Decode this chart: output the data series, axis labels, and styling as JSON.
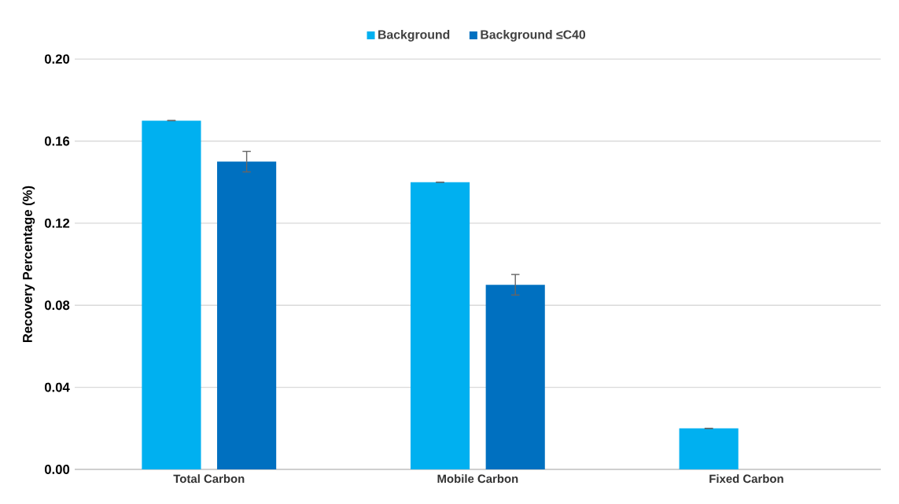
{
  "chart_data": {
    "type": "bar",
    "ylabel": "Recovery Percentage (%)",
    "categories": [
      "Total Carbon",
      "Mobile Carbon",
      "Fixed Carbon"
    ],
    "series": [
      {
        "name": "Background",
        "color": "#00b0f0",
        "values": [
          0.17,
          0.14,
          0.02
        ],
        "errors": [
          0,
          0,
          0
        ]
      },
      {
        "name": "Background ≤C40",
        "color": "#0070c0",
        "values": [
          0.15,
          0.09,
          null
        ],
        "errors": [
          0.005,
          0.005,
          null
        ]
      }
    ],
    "ylim": [
      0,
      0.2
    ],
    "yticks": [
      {
        "value": 0,
        "label": "0.00"
      },
      {
        "value": 0.04,
        "label": "0.04"
      },
      {
        "value": 0.08,
        "label": "0.08"
      },
      {
        "value": 0.12,
        "label": "0.12"
      },
      {
        "value": 0.16,
        "label": "0.16"
      },
      {
        "value": 0.2,
        "label": "0.20"
      }
    ],
    "grid": "y",
    "legend": "top"
  }
}
